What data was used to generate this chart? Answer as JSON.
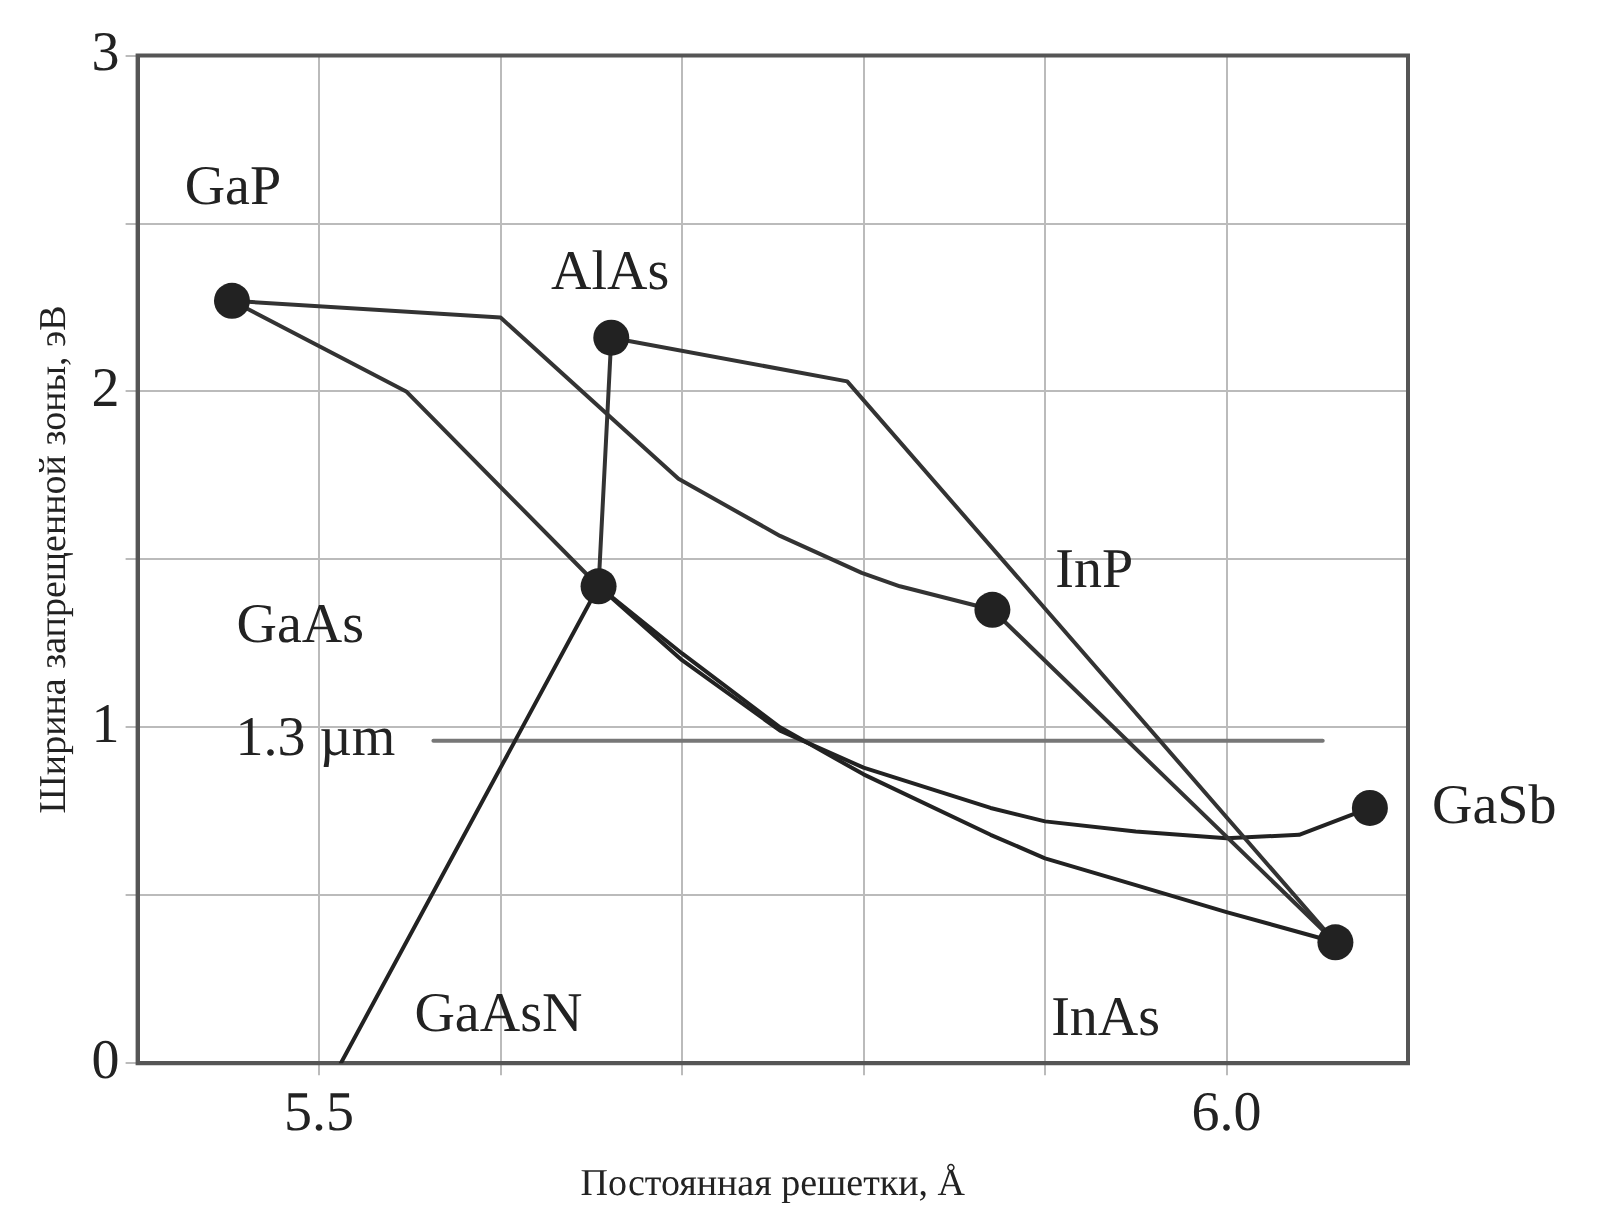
{
  "chart_data": {
    "type": "line",
    "xlabel": "Постоянная решетки, Å",
    "ylabel": "Ширина запрещенной зоны, эВ",
    "xlim": [
      5.4,
      6.1
    ],
    "xticks": [
      5.5,
      {
        "value": 5.6,
        "label": null
      },
      {
        "value": 5.7,
        "label": null
      },
      {
        "value": 5.8,
        "label": null
      },
      {
        "value": 5.9,
        "label": null
      },
      {
        "value": 6,
        "label": "6.0"
      }
    ],
    "ylim": [
      0,
      3
    ],
    "yticks": [
      0,
      {
        "value": 0.5,
        "label": null
      },
      1,
      {
        "value": 1.5,
        "label": null
      },
      2,
      {
        "value": 2.5,
        "label": null
      },
      3
    ],
    "grid": true,
    "legend": false,
    "line_style": "solid",
    "series": [
      {
        "color": "#333333",
        "marker": "none",
        "x": [
          5.452,
          5.548,
          5.654
        ],
        "values": [
          2.27,
          2.0,
          1.42
        ]
      },
      {
        "color": "#333333",
        "marker": "none",
        "x": [
          5.452,
          5.6,
          5.698,
          5.754,
          5.799,
          5.82,
          5.871
        ],
        "values": [
          2.27,
          2.22,
          1.74,
          1.57,
          1.46,
          1.42,
          1.35
        ]
      },
      {
        "color": "#333333",
        "marker": "none",
        "x": [
          5.661,
          5.654
        ],
        "values": [
          2.16,
          1.42
        ]
      },
      {
        "color": "#333333",
        "marker": "none",
        "x": [
          5.661,
          5.791,
          6.06
        ],
        "values": [
          2.16,
          2.03,
          0.36
        ]
      },
      {
        "color": "#333333",
        "marker": "none",
        "x": [
          5.871,
          6.06
        ],
        "values": [
          1.35,
          0.36
        ]
      },
      {
        "color": "#222222",
        "marker": "none",
        "x": [
          5.512,
          5.654
        ],
        "values": [
          0,
          1.42
        ]
      },
      {
        "color": "#222222",
        "marker": "none",
        "x": [
          5.654,
          5.7,
          5.754,
          5.8,
          5.87,
          5.9,
          5.95,
          6.0,
          6.06
        ],
        "values": [
          1.42,
          1.22,
          1.0,
          0.86,
          0.68,
          0.61,
          0.53,
          0.45,
          0.36
        ]
      },
      {
        "color": "#222222",
        "marker": "none",
        "x": [
          5.654,
          5.7,
          5.754,
          5.8,
          5.87,
          5.9,
          5.95,
          6.0,
          6.04,
          6.079
        ],
        "values": [
          1.42,
          1.2,
          0.99,
          0.88,
          0.76,
          0.72,
          0.69,
          0.67,
          0.68,
          0.76
        ]
      },
      {
        "color": "#777777",
        "marker": "none",
        "x": [
          5.563,
          6.053
        ],
        "values": [
          0.96,
          0.96
        ]
      },
      {
        "type": "scatter",
        "color": "#222222",
        "marker": "circle",
        "x": [
          5.452,
          5.661,
          5.654,
          5.871,
          6.079,
          6.06
        ],
        "values": [
          2.27,
          2.16,
          1.42,
          1.35,
          0.76,
          0.36
        ]
      }
    ],
    "annotations": [
      "GaP",
      "AlAs",
      "GaAs",
      "InP",
      "GaSb",
      "InAs",
      "GaAsN",
      "1.3 µm"
    ]
  }
}
